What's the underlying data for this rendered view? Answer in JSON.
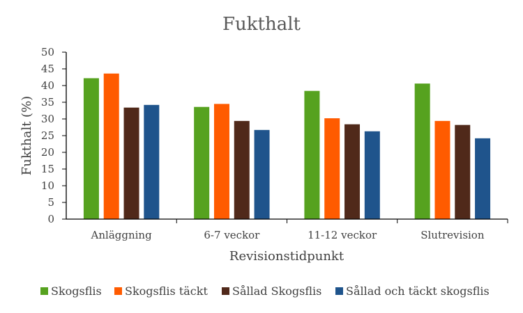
{
  "chart_data": {
    "type": "bar",
    "title": "Fukthalt",
    "xlabel": "Revisionstidpunkt",
    "ylabel": "Fukthalt (%)",
    "ylim": [
      0,
      50
    ],
    "yticks": [
      0,
      5,
      10,
      15,
      20,
      25,
      30,
      35,
      40,
      45,
      50
    ],
    "categories": [
      "Anläggning",
      "6-7 veckor",
      "11-12 veckor",
      "Slutrevision"
    ],
    "series": [
      {
        "name": "Skogsflis",
        "color": "#56a21f",
        "values": [
          42.2,
          33.6,
          38.4,
          40.6
        ]
      },
      {
        "name": "Skogsflis täckt",
        "color": "#ff5b00",
        "values": [
          43.6,
          34.5,
          30.2,
          29.4
        ]
      },
      {
        "name": "Sållad Skogsflis",
        "color": "#50291a",
        "values": [
          33.4,
          29.4,
          28.4,
          28.2
        ]
      },
      {
        "name": "Sållad och täckt skogsflis",
        "color": "#1f548c",
        "values": [
          34.2,
          26.7,
          26.3,
          24.2
        ]
      }
    ],
    "grid": false,
    "legend_position": "bottom"
  }
}
